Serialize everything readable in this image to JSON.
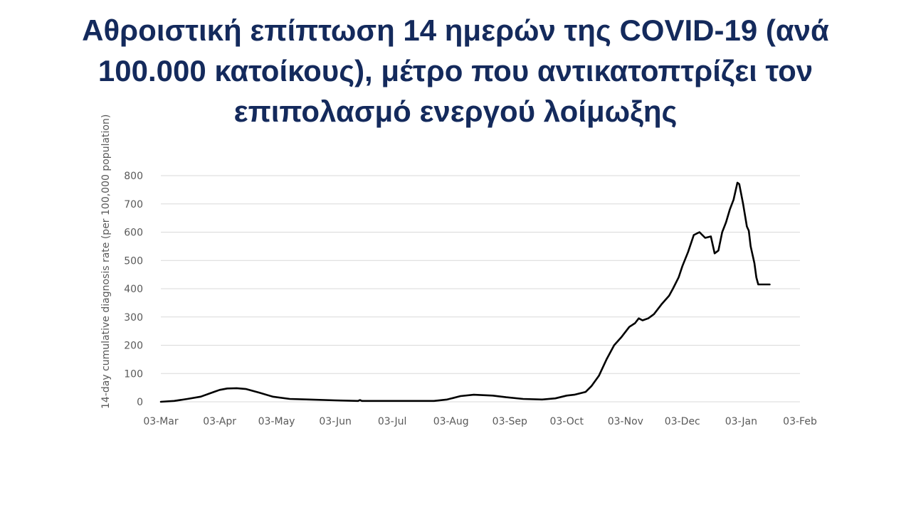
{
  "slide": {
    "title": "Αθροιστική επίπτωση 14 ημερών της COVID-19 (ανά 100.000 κατοίκους), μέτρο που αντικατοπτρίζει τον επιπολασμό ενεργού λοίμωξης"
  },
  "colors": {
    "title": "#142a5c",
    "line": "#000000",
    "grid": "#d9d9d9",
    "text": "#595959"
  },
  "chart_data": {
    "type": "line",
    "title": "",
    "xlabel": "",
    "ylabel": "14-day cumulative diagnosis rate (per 100,000 population)",
    "ylim": [
      0,
      800
    ],
    "yticks": [
      0,
      100,
      200,
      300,
      400,
      500,
      600,
      700,
      800
    ],
    "xlim": [
      "2020-03-03",
      "2021-02-03"
    ],
    "xticks": [
      "03-Mar",
      "03-Apr",
      "03-May",
      "03-Jun",
      "03-Jul",
      "03-Aug",
      "03-Sep",
      "03-Oct",
      "03-Nov",
      "03-Dec",
      "03-Jan",
      "03-Feb"
    ],
    "grid": "horizontal",
    "legend": "none",
    "series": [
      {
        "x": [
          "2020-03-03",
          "2020-03-10",
          "2020-03-17",
          "2020-03-24",
          "2020-03-31",
          "2020-04-03",
          "2020-04-07",
          "2020-04-12",
          "2020-04-17",
          "2020-04-24",
          "2020-05-01",
          "2020-05-10",
          "2020-05-20",
          "2020-06-03",
          "2020-06-15",
          "2020-06-16",
          "2020-06-17",
          "2020-07-01",
          "2020-07-15",
          "2020-07-25",
          "2020-08-01",
          "2020-08-08",
          "2020-08-15",
          "2020-08-25",
          "2020-09-01",
          "2020-09-10",
          "2020-09-20",
          "2020-09-27",
          "2020-10-03",
          "2020-10-07",
          "2020-10-10",
          "2020-10-13",
          "2020-10-16",
          "2020-10-20",
          "2020-10-24",
          "2020-10-28",
          "2020-11-01",
          "2020-11-05",
          "2020-11-08",
          "2020-11-10",
          "2020-11-12",
          "2020-11-15",
          "2020-11-18",
          "2020-11-22",
          "2020-11-26",
          "2020-11-28",
          "2020-12-01",
          "2020-12-03",
          "2020-12-06",
          "2020-12-09",
          "2020-12-12",
          "2020-12-15",
          "2020-12-18",
          "2020-12-20",
          "2020-12-22",
          "2020-12-24",
          "2020-12-26",
          "2020-12-28",
          "2020-12-30",
          "2021-01-01",
          "2021-01-02",
          "2021-01-04",
          "2021-01-06",
          "2021-01-07",
          "2021-01-08",
          "2021-01-10",
          "2021-01-11",
          "2021-01-12",
          "2021-01-13",
          "2021-01-14",
          "2021-01-15",
          "2021-01-16",
          "2021-01-17",
          "2021-01-18"
        ],
        "y": [
          0,
          3,
          10,
          18,
          35,
          42,
          47,
          48,
          45,
          32,
          18,
          10,
          8,
          5,
          3,
          6,
          3,
          3,
          3,
          3,
          8,
          20,
          25,
          22,
          16,
          10,
          8,
          12,
          22,
          25,
          30,
          35,
          55,
          92,
          150,
          200,
          230,
          265,
          278,
          295,
          288,
          295,
          310,
          345,
          375,
          400,
          440,
          480,
          530,
          590,
          600,
          580,
          585,
          525,
          535,
          600,
          635,
          680,
          715,
          775,
          770,
          700,
          620,
          605,
          550,
          490,
          440,
          415,
          415,
          415,
          415,
          415,
          415,
          415
        ]
      }
    ]
  }
}
